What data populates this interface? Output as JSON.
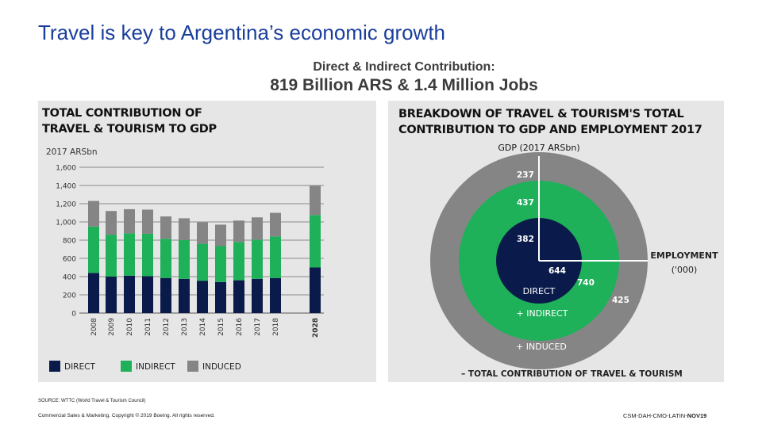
{
  "slide": {
    "title": "Travel is key to Argentina’s economic growth",
    "subtitle_line1": "Direct & Indirect Contribution:",
    "subtitle_line2": "819 Billion ARS & 1.4 Million Jobs"
  },
  "left_panel": {
    "title_line1": "TOTAL CONTRIBUTION OF",
    "title_line2": "TRAVEL & TOURISM TO GDP"
  },
  "right_panel": {
    "title_line1": "BREAKDOWN OF TRAVEL & TOURISM'S TOTAL",
    "title_line2": "CONTRIBUTION TO GDP AND EMPLOYMENT 2017"
  },
  "chart_data": [
    {
      "type": "bar",
      "stacked": true,
      "ylabel": "2017 ARSbn",
      "ylim": [
        0,
        1600
      ],
      "yticks": [
        "1,600",
        "1,400",
        "1,200",
        "1,000",
        "800",
        "600",
        "400",
        "200",
        "0"
      ],
      "grid": true,
      "categories": [
        "2008",
        "2009",
        "2010",
        "2011",
        "2012",
        "2013",
        "2014",
        "2015",
        "2016",
        "2017",
        "2018",
        "2028"
      ],
      "series": [
        {
          "name": "DIRECT",
          "color": "#0a1a4a",
          "values": [
            440,
            400,
            410,
            405,
            385,
            375,
            355,
            340,
            360,
            375,
            385,
            500
          ]
        },
        {
          "name": "INDIRECT",
          "color": "#1fb05a",
          "values": [
            510,
            460,
            465,
            465,
            430,
            425,
            405,
            395,
            420,
            430,
            455,
            575
          ]
        },
        {
          "name": "INDUCED",
          "color": "#858585",
          "values": [
            280,
            260,
            265,
            265,
            245,
            240,
            235,
            235,
            235,
            245,
            260,
            320
          ]
        }
      ],
      "legend_position": "bottom",
      "legend": [
        "DIRECT",
        "INDIRECT",
        "INDUCED"
      ]
    },
    {
      "type": "pie",
      "style": "concentric-rings",
      "labels": {
        "gdp_axis": "GDP (2017 ARSbn)",
        "employment_axis": "EMPLOYMENT",
        "employment_unit": "('000)",
        "direct": "DIRECT",
        "indirect": "+ INDIRECT",
        "induced": "+ INDUCED",
        "total": "– TOTAL CONTRIBUTION OF TRAVEL & TOURISM"
      },
      "rings": [
        {
          "name": "DIRECT",
          "color": "#0a1a4a",
          "gdp": "382",
          "employment": "644"
        },
        {
          "name": "+ INDIRECT",
          "color": "#1fb05a",
          "gdp": "437",
          "employment": "740"
        },
        {
          "name": "+ INDUCED",
          "color": "#858585",
          "gdp": "237",
          "employment": "425"
        }
      ]
    }
  ],
  "footer": {
    "source": "SOURCE: WTTC (World Travel & Tourism Council)",
    "copyright": "Commercial Sales & Marketing. Copyright © 2019 Boeing. All rights reserved.",
    "code_prefix": "CSM-DAH-CMO-LATIN-",
    "code_suffix": "NOV19"
  }
}
